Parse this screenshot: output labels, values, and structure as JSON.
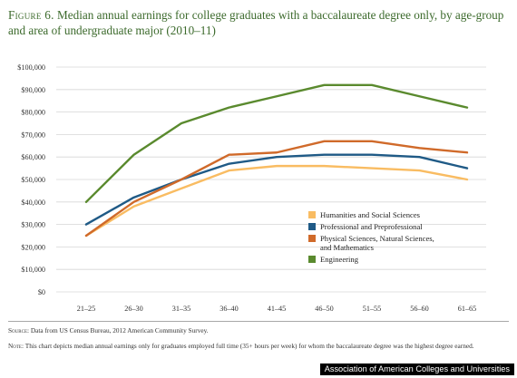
{
  "figure": {
    "label": "Figure 6.",
    "title": "Median annual earnings for college graduates with a baccalaureate degree only, by age-group and area of undergraduate major (2010–11)"
  },
  "chart_data": {
    "type": "line",
    "categories": [
      "21–25",
      "26–30",
      "31–35",
      "36–40",
      "41–45",
      "46–50",
      "51–55",
      "56–60",
      "61–65"
    ],
    "ylim": [
      0,
      100000
    ],
    "yticks": [
      {
        "value": 0,
        "label": "$0"
      },
      {
        "value": 10000,
        "label": "$10,000"
      },
      {
        "value": 20000,
        "label": "$20,000"
      },
      {
        "value": 30000,
        "label": "$30,000"
      },
      {
        "value": 40000,
        "label": "$40,000"
      },
      {
        "value": 50000,
        "label": "$50,000"
      },
      {
        "value": 60000,
        "label": "$60,000"
      },
      {
        "value": 70000,
        "label": "$70,000"
      },
      {
        "value": 80000,
        "label": "$80,000"
      },
      {
        "value": 90000,
        "label": "$90,000"
      },
      {
        "value": 100000,
        "label": "$100,000"
      }
    ],
    "grid": true,
    "legend_position": "lower-right",
    "series": [
      {
        "name": "Humanities and Social Sciences",
        "color": "#f9bc62",
        "values": [
          25000,
          38000,
          46000,
          54000,
          56000,
          56000,
          55000,
          54000,
          50000
        ]
      },
      {
        "name": "Professional and Preprofessional",
        "color": "#1f5a86",
        "values": [
          30000,
          42000,
          50000,
          57000,
          60000,
          61000,
          61000,
          60000,
          55000
        ]
      },
      {
        "name": "Physical Sciences, Natural Sciences, and Mathematics",
        "name_lines": [
          "Physical Sciences, Natural Sciences,",
          "and Mathematics"
        ],
        "color": "#d06a2a",
        "values": [
          25000,
          40000,
          50000,
          61000,
          62000,
          67000,
          67000,
          64000,
          62000
        ]
      },
      {
        "name": "Engineering",
        "color": "#5a8a2e",
        "values": [
          40000,
          61000,
          75000,
          82000,
          87000,
          92000,
          92000,
          87000,
          82000
        ]
      }
    ]
  },
  "source": {
    "label": "Source:",
    "text": "Data from US Census Bureau, 2012 American Community Survey."
  },
  "note": {
    "label": "Note:",
    "text": "This chart depicts median annual earnings only for graduates employed full time (35+ hours per week) for whom the baccalaureate degree was the highest degree earned."
  },
  "credit": "Association of American Colleges and Universities"
}
